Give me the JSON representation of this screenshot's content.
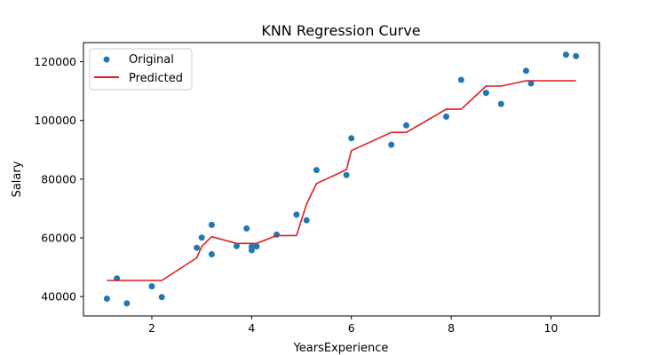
{
  "chart_data": {
    "type": "scatter+line",
    "title": "KNN  Regression Curve",
    "xlabel": "YearsExperience",
    "ylabel": "Salary",
    "xlim": [
      0.63,
      10.97
    ],
    "ylim": [
      33400,
      126500
    ],
    "xticks": [
      2,
      4,
      6,
      8,
      10
    ],
    "yticks": [
      40000,
      60000,
      80000,
      100000,
      120000
    ],
    "xtick_labels": [
      "2",
      "4",
      "6",
      "8",
      "10"
    ],
    "ytick_labels": [
      "40000",
      "60000",
      "80000",
      "100000",
      "120000"
    ],
    "grid": false,
    "legend": {
      "position": "top-left",
      "entries": [
        "Original",
        "Predicted"
      ]
    },
    "colors": {
      "original": "#1f77b4",
      "predicted": "#e01b1b"
    },
    "series": [
      {
        "name": "Original",
        "kind": "scatter",
        "x": [
          1.1,
          1.3,
          1.5,
          2.0,
          2.2,
          2.9,
          3.0,
          3.2,
          3.2,
          3.7,
          3.9,
          4.0,
          4.0,
          4.1,
          4.5,
          4.9,
          5.1,
          5.3,
          5.9,
          6.0,
          6.8,
          7.1,
          7.9,
          8.2,
          8.7,
          9.0,
          9.5,
          9.6,
          10.3,
          10.5
        ],
        "y": [
          39300,
          46200,
          37700,
          43500,
          39800,
          56600,
          60100,
          54400,
          64400,
          57200,
          63200,
          55800,
          57000,
          57100,
          61100,
          67900,
          66000,
          83100,
          81400,
          93900,
          91700,
          98300,
          101300,
          113800,
          109400,
          105600,
          116900,
          112600,
          122400,
          121900
        ]
      },
      {
        "name": "Predicted",
        "kind": "line",
        "x": [
          1.1,
          1.3,
          1.5,
          2.0,
          2.2,
          2.9,
          3.0,
          3.2,
          3.7,
          3.9,
          4.0,
          4.1,
          4.5,
          4.9,
          5.1,
          5.3,
          5.9,
          6.0,
          6.8,
          7.1,
          7.9,
          8.2,
          8.7,
          9.0,
          9.5,
          9.6,
          10.3,
          10.5
        ],
        "y": [
          45500,
          45500,
          45500,
          45500,
          45500,
          53200,
          57100,
          60400,
          58100,
          58100,
          58100,
          58100,
          60800,
          60800,
          71500,
          78500,
          83200,
          89700,
          95900,
          95900,
          103800,
          103800,
          111700,
          111700,
          113500,
          113500,
          113500,
          113500
        ]
      }
    ]
  }
}
